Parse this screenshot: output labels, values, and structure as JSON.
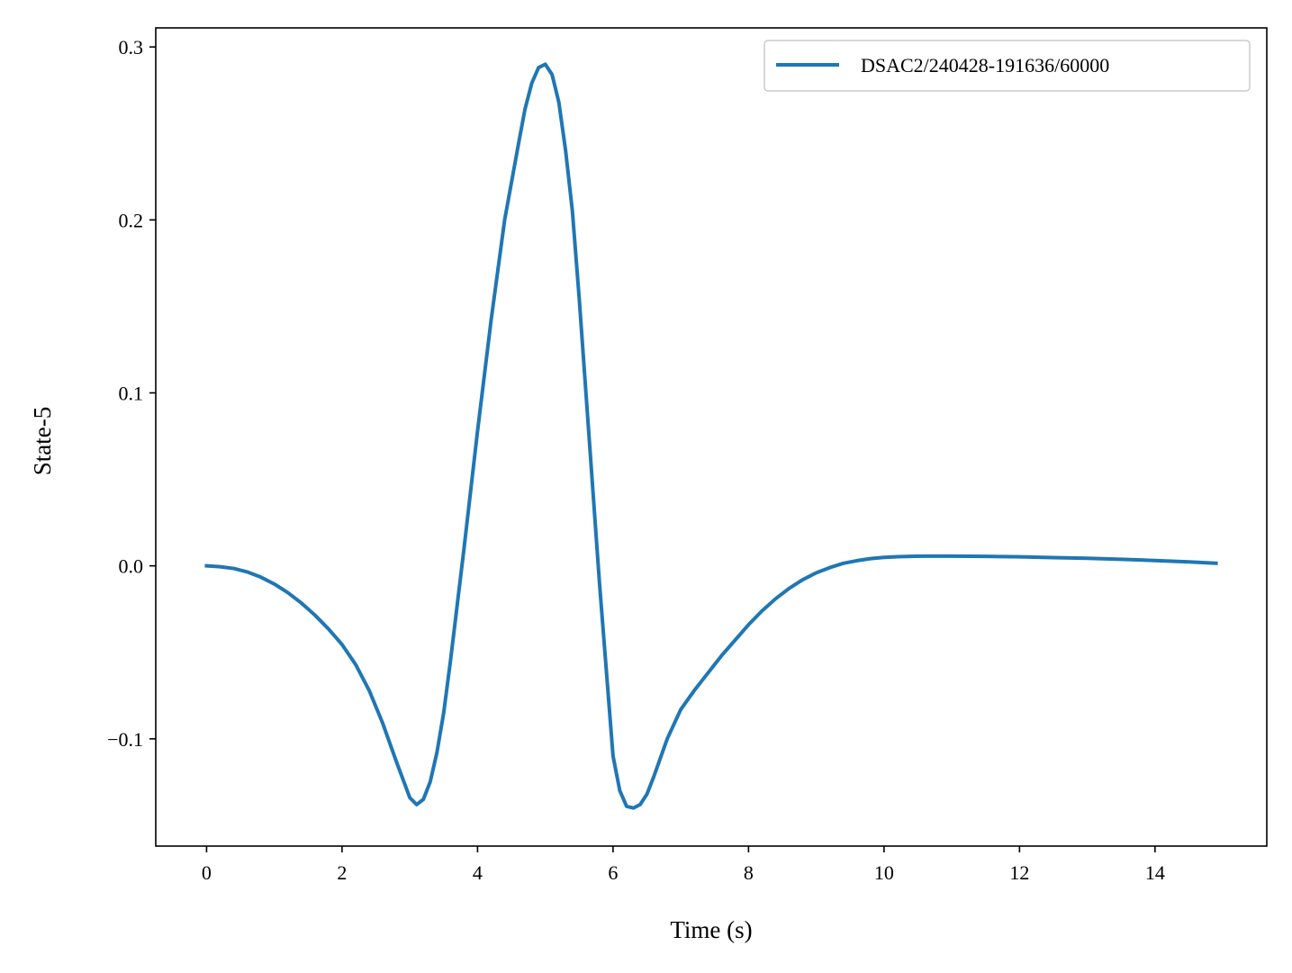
{
  "chart_data": {
    "type": "line",
    "xlabel": "Time (s)",
    "ylabel": "State-5",
    "xlim": [
      -0.75,
      15.65
    ],
    "ylim": [
      -0.162,
      0.311
    ],
    "xticks": [
      0,
      2,
      4,
      6,
      8,
      10,
      12,
      14
    ],
    "xtick_labels": [
      "0",
      "2",
      "4",
      "6",
      "8",
      "10",
      "12",
      "14"
    ],
    "yticks": [
      -0.1,
      0.0,
      0.1,
      0.2,
      0.3
    ],
    "ytick_labels": [
      "−0.1",
      "0.0",
      "0.1",
      "0.2",
      "0.3"
    ],
    "grid": false,
    "legend": {
      "placement": "top-right"
    },
    "series": [
      {
        "name": "DSAC2/240428-191636/60000",
        "color": "#1f77b4",
        "x": [
          0.0,
          0.2,
          0.4,
          0.6,
          0.8,
          1.0,
          1.2,
          1.4,
          1.6,
          1.8,
          2.0,
          2.2,
          2.4,
          2.6,
          2.8,
          3.0,
          3.1,
          3.2,
          3.3,
          3.4,
          3.5,
          3.6,
          3.8,
          4.0,
          4.2,
          4.4,
          4.6,
          4.7,
          4.8,
          4.9,
          5.0,
          5.1,
          5.2,
          5.3,
          5.4,
          5.5,
          5.6,
          5.8,
          6.0,
          6.1,
          6.2,
          6.3,
          6.4,
          6.5,
          6.6,
          6.8,
          7.0,
          7.2,
          7.4,
          7.6,
          7.8,
          8.0,
          8.2,
          8.4,
          8.6,
          8.8,
          9.0,
          9.2,
          9.4,
          9.6,
          9.8,
          10.0,
          10.2,
          10.4,
          10.6,
          10.8,
          11.0,
          11.5,
          12.0,
          12.5,
          13.0,
          13.5,
          14.0,
          14.5,
          14.9
        ],
        "y": [
          0.0,
          -0.0005,
          -0.0015,
          -0.0035,
          -0.0065,
          -0.0105,
          -0.0155,
          -0.0215,
          -0.0285,
          -0.0365,
          -0.0455,
          -0.057,
          -0.072,
          -0.091,
          -0.113,
          -0.134,
          -0.138,
          -0.135,
          -0.125,
          -0.108,
          -0.085,
          -0.055,
          0.01,
          0.078,
          0.142,
          0.2,
          0.243,
          0.264,
          0.279,
          0.288,
          0.29,
          0.284,
          0.268,
          0.24,
          0.205,
          0.155,
          0.1,
          -0.01,
          -0.11,
          -0.13,
          -0.139,
          -0.14,
          -0.138,
          -0.132,
          -0.122,
          -0.1,
          -0.083,
          -0.072,
          -0.062,
          -0.052,
          -0.043,
          -0.034,
          -0.026,
          -0.019,
          -0.013,
          -0.008,
          -0.004,
          -0.001,
          0.0015,
          0.003,
          0.0042,
          0.0049,
          0.0053,
          0.0055,
          0.0056,
          0.0056,
          0.0056,
          0.0055,
          0.0052,
          0.0048,
          0.0044,
          0.0038,
          0.0031,
          0.0023,
          0.0015
        ]
      }
    ]
  }
}
